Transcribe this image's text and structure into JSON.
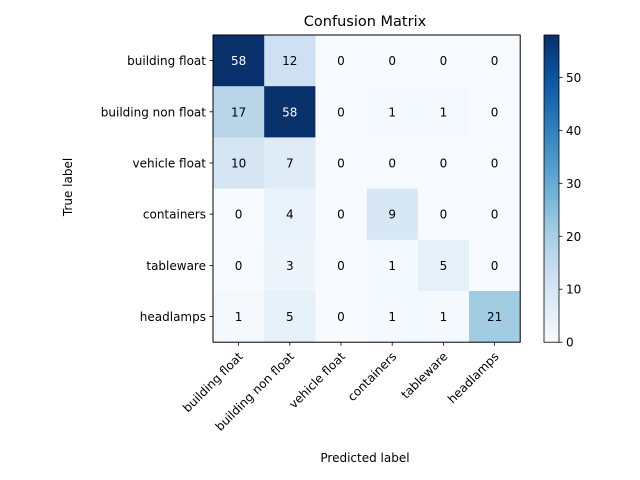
{
  "chart_data": {
    "type": "heatmap",
    "title": "Confusion Matrix",
    "xlabel": "Predicted label",
    "ylabel": "True label",
    "rows": [
      "building float",
      "building non float",
      "vehicle float",
      "containers",
      "tableware",
      "headlamps"
    ],
    "columns": [
      "building float",
      "building non float",
      "vehicle float",
      "containers",
      "tableware",
      "headlamps"
    ],
    "values": [
      [
        58,
        12,
        0,
        0,
        0,
        0
      ],
      [
        17,
        58,
        0,
        1,
        1,
        0
      ],
      [
        10,
        7,
        0,
        0,
        0,
        0
      ],
      [
        0,
        4,
        0,
        9,
        0,
        0
      ],
      [
        0,
        3,
        0,
        1,
        5,
        0
      ],
      [
        1,
        5,
        0,
        1,
        1,
        21
      ]
    ],
    "colormap": "Blues",
    "value_range": [
      0,
      58
    ],
    "colorbar": {
      "ticks": [
        0,
        10,
        20,
        30,
        40,
        50
      ],
      "tick_labels": [
        "0",
        "10",
        "20",
        "30",
        "40",
        "50"
      ]
    },
    "text_color_dark": "#000000",
    "text_color_light": "#ffffff"
  }
}
